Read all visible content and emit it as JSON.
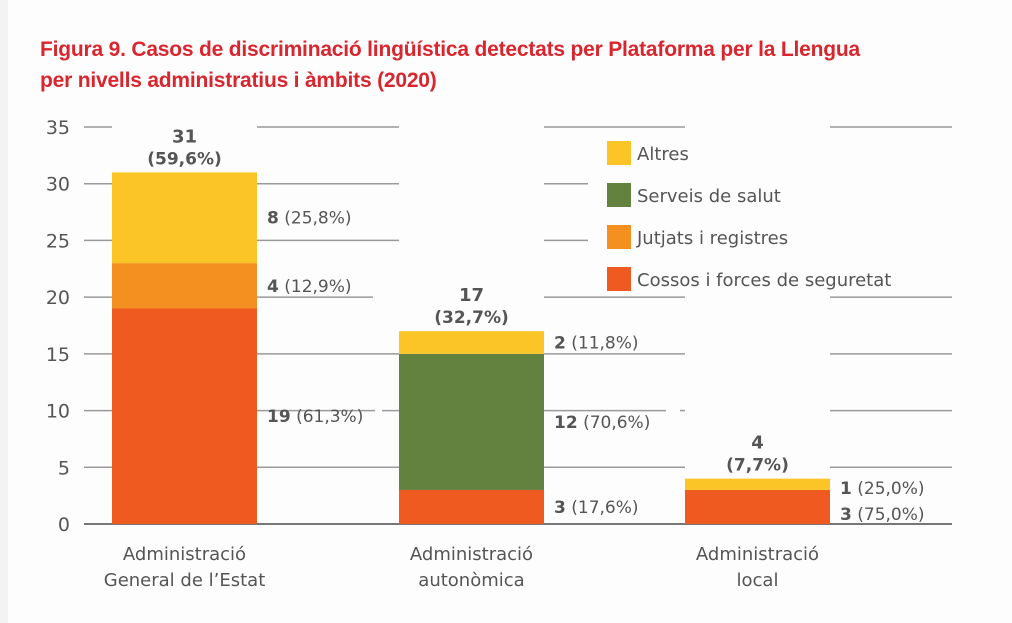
{
  "title_line1": "Figura 9. Casos de discriminació lingüística detectats per Plataforma per la Llengua",
  "title_line2": "per nivells administratius i àmbits (2020)",
  "colors": {
    "Altres": "#fcc527",
    "Serveis de salut": "#63823f",
    "Jutjats i registres": "#f4901f",
    "Cossos i forces de seguretat": "#ef5a21",
    "grid": "#9a9a9a",
    "axis": "#777777",
    "title": "#d9262e"
  },
  "chart_data": {
    "type": "bar",
    "stacked": true,
    "title": "Figura 9. Casos de discriminació lingüística detectats per Plataforma per la Llengua per nivells administratius i àmbits (2020)",
    "xlabel": "",
    "ylabel": "",
    "ylim": [
      0,
      35
    ],
    "yticks": [
      0,
      5,
      10,
      15,
      20,
      25,
      30,
      35
    ],
    "grid": true,
    "legend_position": "top-right",
    "categories": [
      [
        "Administració",
        "General de l’Estat"
      ],
      [
        "Administració",
        "autonòmica"
      ],
      [
        "Administració",
        "local"
      ]
    ],
    "totals": [
      {
        "value": "31",
        "pct": "(59,6%)"
      },
      {
        "value": "17",
        "pct": "(32,7%)"
      },
      {
        "value": "4",
        "pct": "(7,7%)"
      }
    ],
    "legend": [
      "Altres",
      "Serveis de salut",
      "Jutjats i registres",
      "Cossos i forces de seguretat"
    ],
    "series": [
      {
        "name": "Cossos i forces de seguretat",
        "values": [
          19,
          3,
          3
        ],
        "labels": [
          [
            "19",
            " (61,3%)"
          ],
          [
            "3",
            " (17,6%)"
          ],
          [
            "3",
            " (75,0%)"
          ]
        ]
      },
      {
        "name": "Jutjats i registres",
        "values": [
          4,
          0,
          0
        ],
        "labels": [
          [
            "4",
            " (12,9%)"
          ],
          null,
          null
        ]
      },
      {
        "name": "Serveis de salut",
        "values": [
          0,
          12,
          0
        ],
        "labels": [
          null,
          [
            "12",
            " (70,6%)"
          ],
          null
        ]
      },
      {
        "name": "Altres",
        "values": [
          8,
          2,
          1
        ],
        "labels": [
          [
            "8",
            " (25,8%)"
          ],
          [
            "2",
            " (11,8%)"
          ],
          [
            "1",
            " (25,0%)"
          ]
        ]
      }
    ]
  }
}
